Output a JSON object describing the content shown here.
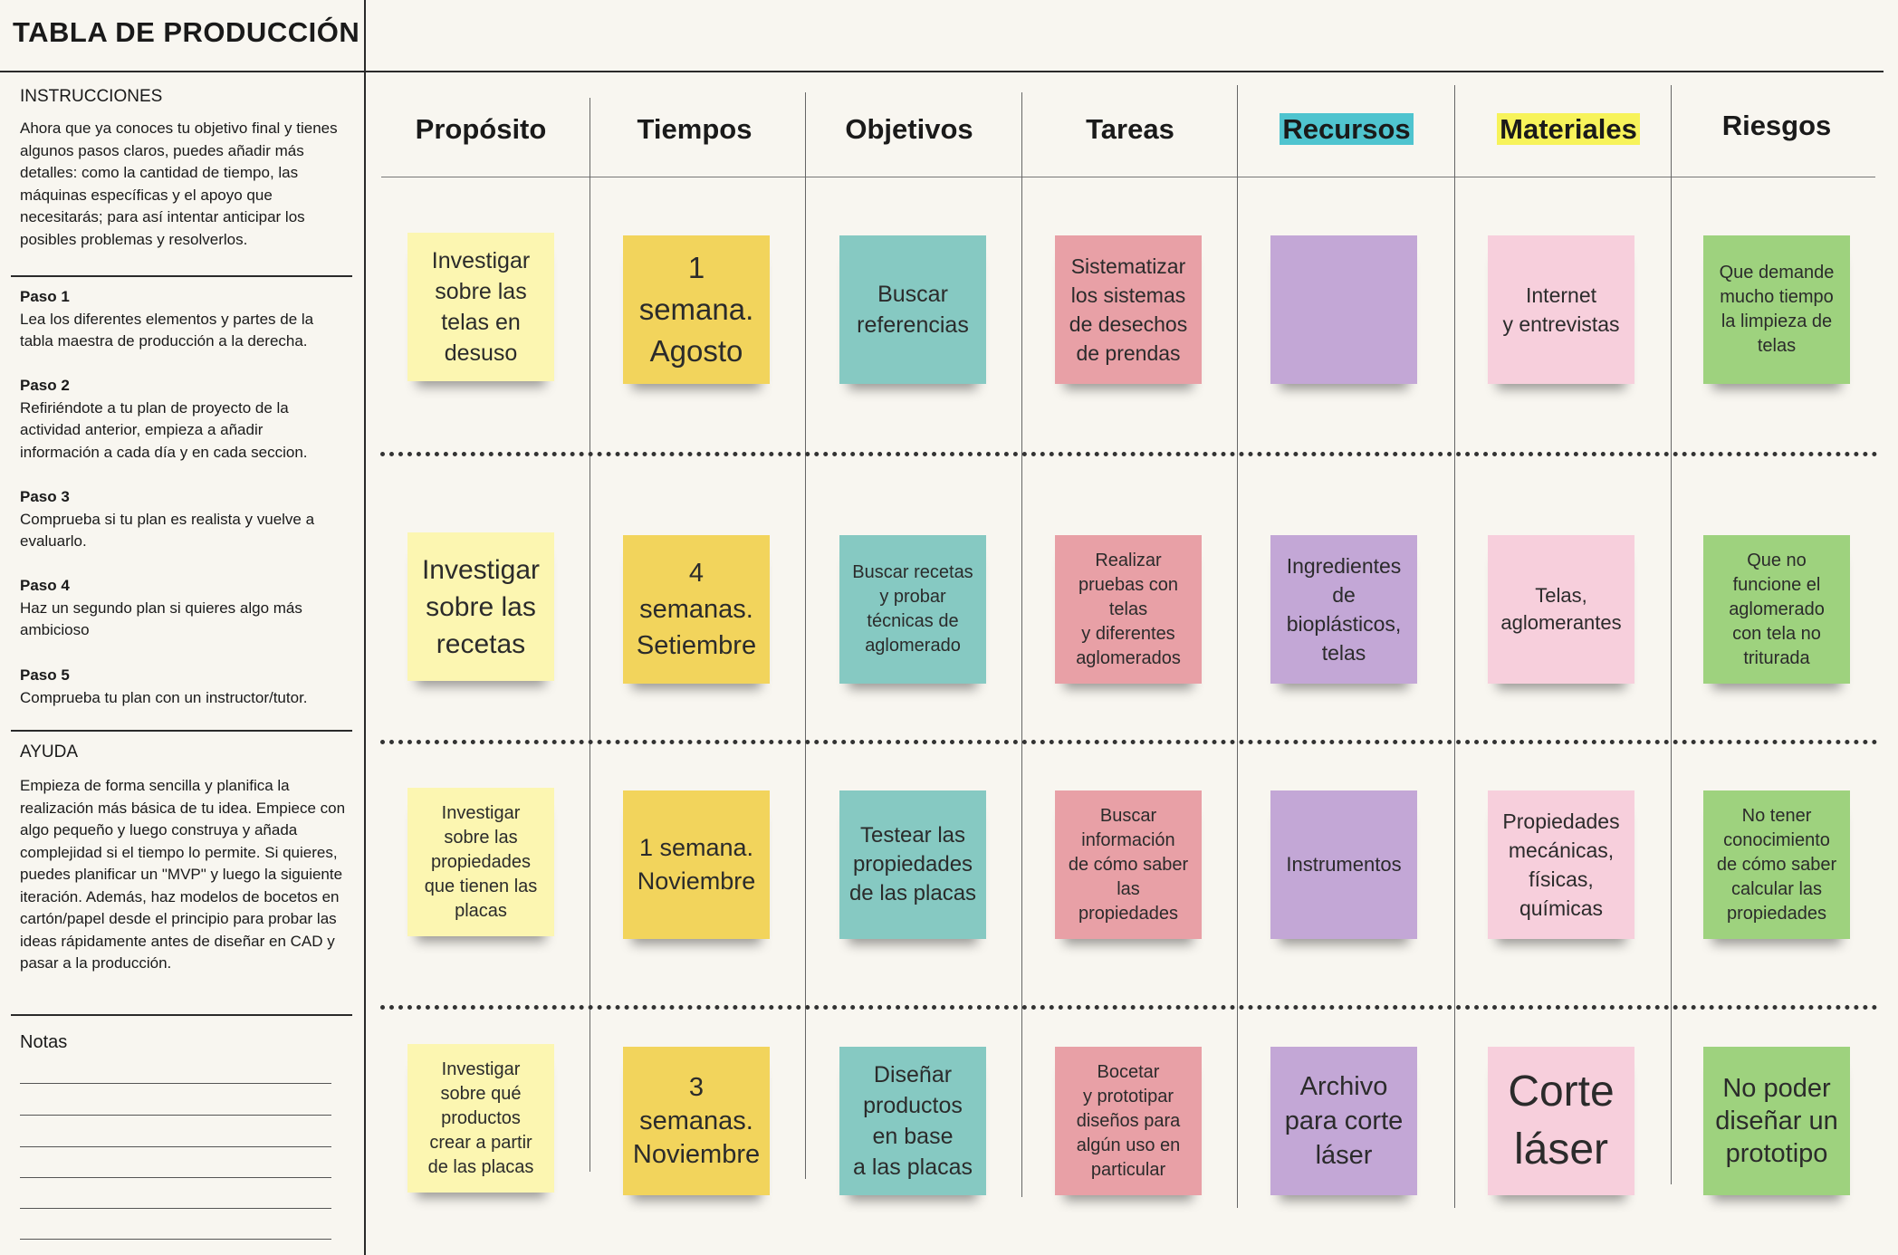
{
  "sidebar": {
    "title": "TABLA DE PRODUCCIÓN",
    "instructions": {
      "heading": "INSTRUCCIONES",
      "text": "Ahora que ya conoces tu objetivo final y tienes algunos pasos claros, puedes añadir más detalles: como la cantidad de tiempo, las máquinas específicas y el apoyo que necesitarás; para así intentar anticipar los posibles problemas y resolverlos."
    },
    "steps": [
      {
        "title": "Paso 1",
        "text": "Lea los diferentes elementos y partes de la tabla maestra de producción a la derecha."
      },
      {
        "title": "Paso 2",
        "text": "Refiriéndote a tu plan de proyecto de la actividad anterior, empieza a añadir información a cada día y en cada seccion."
      },
      {
        "title": "Paso 3",
        "text": "Comprueba si tu plan es realista y vuelve a evaluarlo."
      },
      {
        "title": "Paso 4",
        "text": "Haz un segundo plan si quieres algo más ambicioso"
      },
      {
        "title": "Paso 5",
        "text": "Comprueba tu plan con un instructor/tutor."
      }
    ],
    "help": {
      "heading": "AYUDA",
      "text": "Empieza de forma sencilla y planifica la realización más básica de tu idea. Empiece con algo pequeño y luego construya y añada complejidad si el tiempo lo permite. Si quieres, puedes planificar un \"MVP\" y luego la siguiente iteración. Además, haz modelos de bocetos en cartón/papel desde el principio para probar las ideas rápidamente antes de diseñar en CAD y pasar a la producción."
    },
    "notes_heading": "Notas"
  },
  "columns": [
    "Propósito",
    "Tiempos",
    "Objetivos",
    "Tareas",
    "Recursos",
    "Materiales",
    "Riesgos"
  ],
  "colors": {
    "ylw": "#fcf6b1",
    "gld": "#f2d45c",
    "tel": "#86c9c2",
    "red": "#e8a0a6",
    "pur": "#c3a7d6",
    "pnk": "#f7cfdc",
    "grn": "#9ed27e",
    "hl_recursos": "#4fc4cf",
    "hl_materiales": "#f7f35a"
  },
  "rows": [
    [
      "Investigar\nsobre las\ntelas en\ndesuso",
      "1\nsemana.\nAgosto",
      "Buscar\nreferencias",
      "Sistematizar\nlos sistemas\nde desechos\nde prendas",
      "",
      "Internet\ny entrevistas",
      "Que demande\nmucho tiempo\nla limpieza de\ntelas"
    ],
    [
      "Investigar\nsobre las\nrecetas",
      "4\nsemanas.\nSetiembre",
      "Buscar recetas\ny probar\ntécnicas de\naglomerado",
      "Realizar\npruebas con\ntelas\ny diferentes\naglomerados",
      "Ingredientes\nde\nbioplásticos,\ntelas",
      "Telas,\naglomerantes",
      "Que no\nfuncione el\naglomerado\ncon tela no\ntriturada"
    ],
    [
      "Investigar\nsobre las\npropiedades\nque tienen las\nplacas",
      "1 semana.\nNoviembre",
      "Testear las\npropiedades\nde las placas",
      "Buscar\ninformación\nde cómo saber\nlas\npropiedades",
      "Instrumentos",
      "Propiedades\nmecánicas,\nfísicas,\nquímicas",
      "No tener\nconocimiento\nde cómo saber\ncalcular las\npropiedades"
    ],
    [
      "Investigar\nsobre qué\nproductos\ncrear a partir\nde las placas",
      "3\nsemanas.\nNoviembre",
      "Diseñar\nproductos\nen base\na las placas",
      "Bocetar\ny prototipar\ndiseños para\nalgún uso en\nparticular",
      "Archivo\npara corte\nláser",
      "Corte\nláser",
      "No poder\ndiseñar un\nprototipo"
    ]
  ]
}
